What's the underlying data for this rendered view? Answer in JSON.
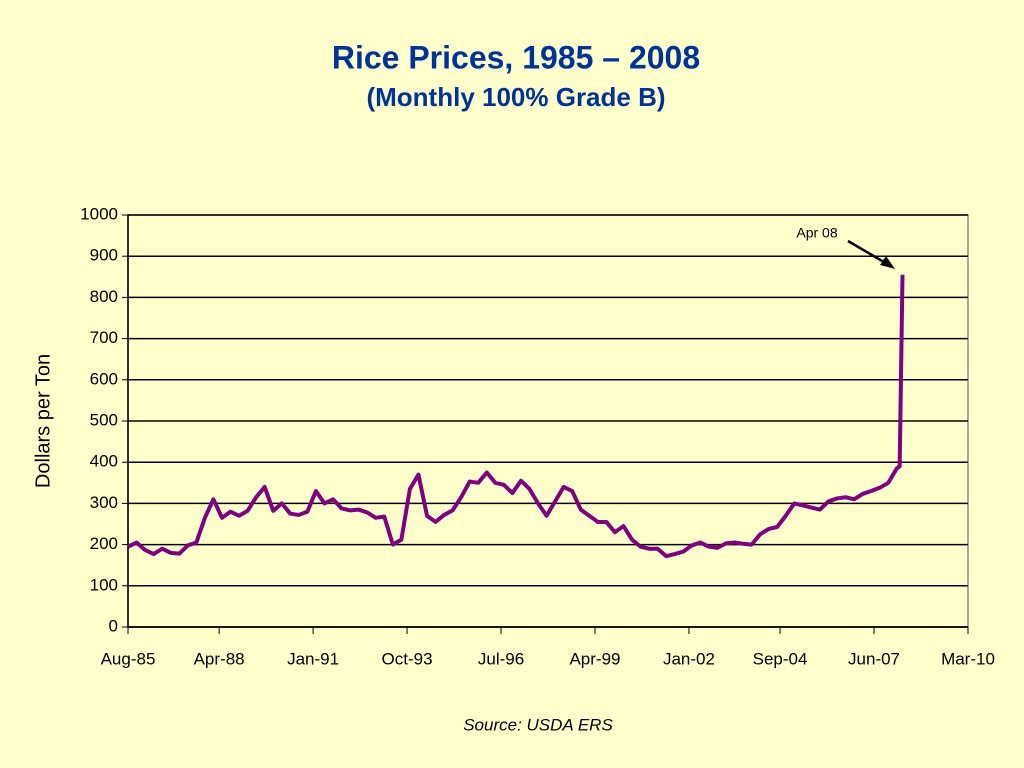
{
  "chart_data": {
    "type": "line",
    "title": "Rice Prices, 1985 – 2008",
    "subtitle": "(Monthly 100% Grade B)",
    "y_label": "Dollars per Ton",
    "source": "Source: USDA ERS",
    "annotation": "Apr 08",
    "x": [
      "Aug-85",
      "Nov-85",
      "Feb-86",
      "May-86",
      "Aug-86",
      "Nov-86",
      "Feb-87",
      "May-87",
      "Aug-87",
      "Nov-87",
      "Feb-88",
      "May-88",
      "Aug-88",
      "Nov-88",
      "Feb-89",
      "May-89",
      "Aug-89",
      "Nov-89",
      "Feb-90",
      "May-90",
      "Aug-90",
      "Nov-90",
      "Feb-91",
      "May-91",
      "Aug-91",
      "Nov-91",
      "Feb-92",
      "May-92",
      "Aug-92",
      "Nov-92",
      "Feb-93",
      "May-93",
      "Aug-93",
      "Nov-93",
      "Feb-94",
      "May-94",
      "Aug-94",
      "Nov-94",
      "Feb-95",
      "May-95",
      "Aug-95",
      "Nov-95",
      "Feb-96",
      "May-96",
      "Aug-96",
      "Nov-96",
      "Feb-97",
      "May-97",
      "Aug-97",
      "Nov-97",
      "Feb-98",
      "May-98",
      "Aug-98",
      "Nov-98",
      "Feb-99",
      "May-99",
      "Aug-99",
      "Nov-99",
      "Feb-00",
      "May-00",
      "Aug-00",
      "Nov-00",
      "Feb-01",
      "May-01",
      "Aug-01",
      "Nov-01",
      "Feb-02",
      "May-02",
      "Aug-02",
      "Nov-02",
      "Feb-03",
      "May-03",
      "Aug-03",
      "Nov-03",
      "Feb-04",
      "May-04",
      "Aug-04",
      "Nov-04",
      "Feb-05",
      "May-05",
      "Aug-05",
      "Nov-05",
      "Feb-06",
      "May-06",
      "Aug-06",
      "Nov-06",
      "Feb-07",
      "May-07",
      "Aug-07",
      "Nov-07",
      "Feb-08",
      "Mar-08",
      "Apr-08"
    ],
    "series": [
      {
        "name": "Rice price",
        "color": "#800080",
        "values": [
          195,
          205,
          187,
          177,
          190,
          180,
          178,
          198,
          205,
          265,
          310,
          265,
          280,
          270,
          282,
          315,
          340,
          282,
          300,
          275,
          272,
          280,
          330,
          300,
          310,
          288,
          283,
          285,
          278,
          265,
          268,
          200,
          212,
          335,
          370,
          270,
          255,
          272,
          283,
          315,
          353,
          350,
          375,
          350,
          345,
          325,
          355,
          335,
          300,
          270,
          305,
          340,
          330,
          285,
          270,
          255,
          255,
          230,
          245,
          212,
          195,
          190,
          190,
          172,
          177,
          183,
          198,
          205,
          195,
          192,
          203,
          205,
          202,
          200,
          225,
          238,
          243,
          270,
          300,
          295,
          290,
          285,
          305,
          312,
          315,
          310,
          323,
          330,
          338,
          350,
          385,
          390,
          855
        ]
      }
    ],
    "xlim": [
      "Aug-85",
      "Mar-10"
    ],
    "xticks": [
      "Aug-85",
      "Apr-88",
      "Jan-91",
      "Oct-93",
      "Jul-96",
      "Apr-99",
      "Jan-02",
      "Sep-04",
      "Jun-07",
      "Mar-10"
    ],
    "ylim": [
      0,
      1000
    ],
    "yticks": [
      0,
      100,
      200,
      300,
      400,
      500,
      600,
      700,
      800,
      900,
      1000
    ],
    "grid": true
  }
}
